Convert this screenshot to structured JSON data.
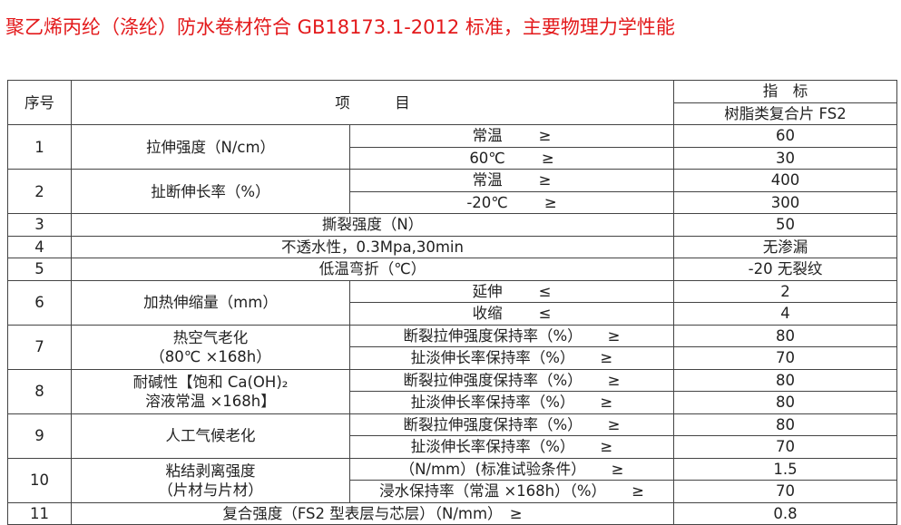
{
  "title": "聚乙烯丙纶（涤纶）防水卷材符合 GB18173.1-2012 标准，主要物理力学性能",
  "header": {
    "seq": "序号",
    "item": "项　　　目",
    "index": "指　标",
    "material": "树脂类复合片 FS2"
  },
  "rows": [
    {
      "no": "1",
      "item": [
        "拉伸强度（N/cm）"
      ],
      "subs": [
        {
          "label": "常温",
          "sign": "≥",
          "value": "60"
        },
        {
          "label": "60℃",
          "sign": "≥",
          "value": "30"
        }
      ]
    },
    {
      "no": "2",
      "item": [
        "扯断伸长率（%）"
      ],
      "subs": [
        {
          "label": "常温",
          "sign": "≥",
          "value": "400"
        },
        {
          "label": "-20℃",
          "sign": "≥",
          "value": "300"
        }
      ]
    },
    {
      "no": "3",
      "item": [
        "撕裂强度（N）"
      ],
      "value": "50"
    },
    {
      "no": "4",
      "item": [
        "不透水性，0.3Mpa,30min"
      ],
      "value": "无渗漏"
    },
    {
      "no": "5",
      "item": [
        "低温弯折（℃）"
      ],
      "value": "-20 无裂纹"
    },
    {
      "no": "6",
      "item": [
        "加热伸缩量（mm）"
      ],
      "subs": [
        {
          "label": "延伸",
          "sign": "≤",
          "value": "2"
        },
        {
          "label": "收缩",
          "sign": "≤",
          "value": "4"
        }
      ]
    },
    {
      "no": "7",
      "item": [
        "热空气老化",
        "（80℃ ×168h）"
      ],
      "subs": [
        {
          "label": "断裂拉伸强度保持率（%）",
          "sign": "≥",
          "value": "80"
        },
        {
          "label": "扯淡伸长率保持率（%）",
          "sign": "≥",
          "value": "70"
        }
      ]
    },
    {
      "no": "8",
      "item": [
        "耐碱性【饱和 Ca(OH)₂",
        "溶液常温 ×168h】"
      ],
      "subs": [
        {
          "label": "断裂拉伸强度保持率（%）",
          "sign": "≥",
          "value": "80"
        },
        {
          "label": "扯淡伸长率保持率（%）",
          "sign": "≥",
          "value": "80"
        }
      ]
    },
    {
      "no": "9",
      "item": [
        "人工气候老化"
      ],
      "subs": [
        {
          "label": "断裂拉伸强度保持率（%）",
          "sign": "≥",
          "value": "80"
        },
        {
          "label": "扯淡伸长率保持率（%）",
          "sign": "≥",
          "value": "70"
        }
      ]
    },
    {
      "no": "10",
      "item": [
        "粘结剥离强度",
        "（片材与片材）"
      ],
      "subs": [
        {
          "label": "（N/mm）(标准试验条件）",
          "sign": "≥",
          "value": "1.5"
        },
        {
          "label": "浸水保持率（常温 ×168h）（%）",
          "sign": "≥",
          "value": "70"
        }
      ]
    },
    {
      "no": "11",
      "item": [
        "复合强度（FS2 型表层与芯层）（N/mm）　≥"
      ],
      "value": "0.8"
    }
  ]
}
